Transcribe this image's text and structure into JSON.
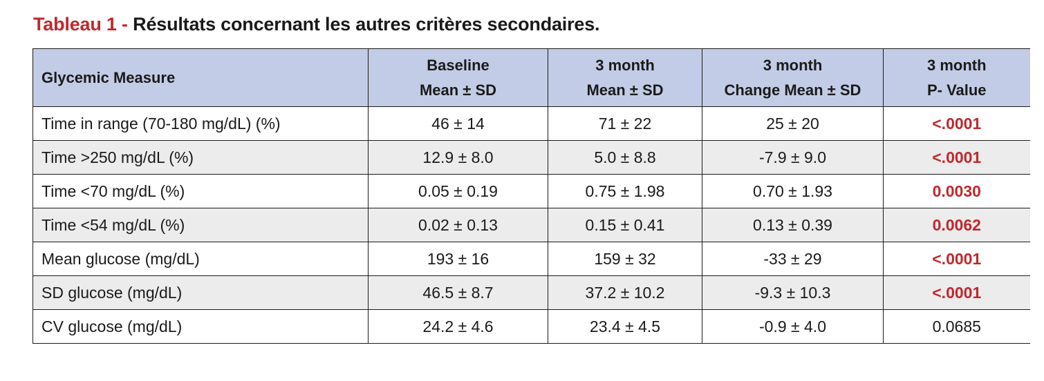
{
  "caption": {
    "label": "Tableau 1 - ",
    "title": "Résultats concernant les autres critères secondaires."
  },
  "colors": {
    "header_bg": "#c3cce6",
    "alt_row_bg": "#ececec",
    "accent_red": "#c0282d"
  },
  "table": {
    "headers": [
      {
        "lines": [
          "Glycemic Measure"
        ]
      },
      {
        "lines": [
          "Baseline",
          "Mean ± SD"
        ]
      },
      {
        "lines": [
          "3 month",
          "Mean ± SD"
        ]
      },
      {
        "lines": [
          "3 month",
          "Change Mean ± SD"
        ]
      },
      {
        "lines": [
          "3 month",
          "P- Value"
        ]
      }
    ],
    "rows": [
      {
        "measure": "Time in range (70-180 mg/dL) (%)",
        "baseline": "46 ± 14",
        "month3": "71 ± 22",
        "change": "25 ± 20",
        "p_value": "<.0001",
        "significant": true
      },
      {
        "measure": "Time >250 mg/dL (%)",
        "baseline": "12.9 ± 8.0",
        "month3": "5.0 ± 8.8",
        "change": "-7.9 ± 9.0",
        "p_value": "<.0001",
        "significant": true
      },
      {
        "measure": "Time <70 mg/dL (%)",
        "baseline": "0.05 ± 0.19",
        "month3": "0.75 ± 1.98",
        "change": "0.70 ± 1.93",
        "p_value": "0.0030",
        "significant": true
      },
      {
        "measure": "Time <54 mg/dL (%)",
        "baseline": "0.02 ± 0.13",
        "month3": "0.15 ± 0.41",
        "change": "0.13 ± 0.39",
        "p_value": "0.0062",
        "significant": true
      },
      {
        "measure": "Mean glucose (mg/dL)",
        "baseline": "193 ± 16",
        "month3": "159 ± 32",
        "change": "-33 ± 29",
        "p_value": "<.0001",
        "significant": true
      },
      {
        "measure": "SD glucose (mg/dL)",
        "baseline": "46.5 ± 8.7",
        "month3": "37.2 ± 10.2",
        "change": "-9.3 ± 10.3",
        "p_value": "<.0001",
        "significant": true
      },
      {
        "measure": "CV glucose (mg/dL)",
        "baseline": "24.2 ± 4.6",
        "month3": "23.4 ± 4.5",
        "change": "-0.9 ± 4.0",
        "p_value": "0.0685",
        "significant": false
      }
    ]
  }
}
